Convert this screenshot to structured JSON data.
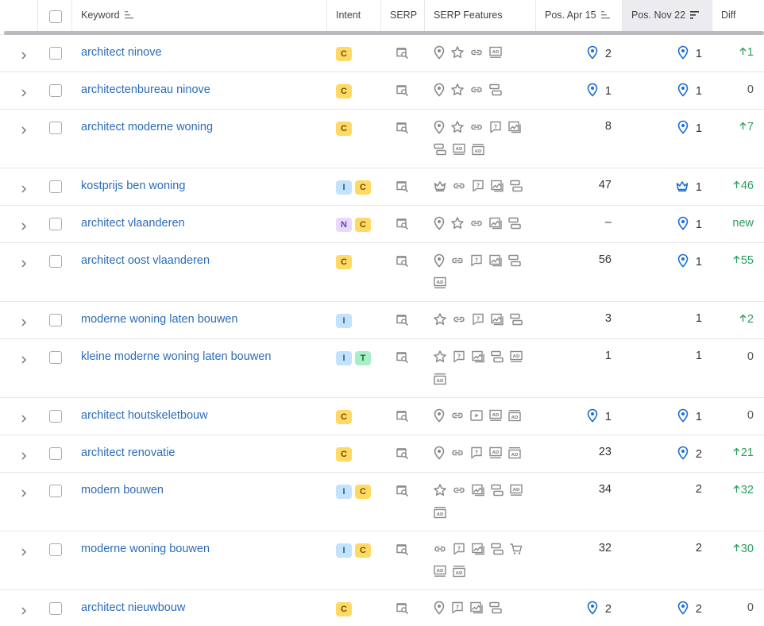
{
  "header": {
    "keyword": "Keyword",
    "intent": "Intent",
    "serp": "SERP",
    "serp_features": "SERP Features",
    "pos_apr": "Pos. Apr 15",
    "pos_nov": "Pos. Nov 22",
    "diff": "Diff"
  },
  "colors": {
    "link": "#2b6cb8",
    "up": "#2a9d5c",
    "pin": "#1c6fd1"
  },
  "rows": [
    {
      "keyword": "architect ninove",
      "intent": [
        "C"
      ],
      "features": [
        "pin",
        "star",
        "link",
        "ad"
      ],
      "apr": "2",
      "apr_pin": true,
      "nov": "1",
      "nov_icon": "pin",
      "diff": "1",
      "dir": "up"
    },
    {
      "keyword": "architectenbureau ninove",
      "intent": [
        "C"
      ],
      "features": [
        "pin",
        "star",
        "link",
        "list"
      ],
      "apr": "1",
      "apr_pin": true,
      "nov": "1",
      "nov_icon": "pin",
      "diff": "0",
      "dir": "zero"
    },
    {
      "keyword": "architect moderne woning",
      "intent": [
        "C"
      ],
      "features": [
        "pin",
        "star",
        "link",
        "faq",
        "image",
        "list",
        "ad",
        "adbottom"
      ],
      "apr": "8",
      "apr_pin": false,
      "nov": "1",
      "nov_icon": "pin",
      "diff": "7",
      "dir": "up"
    },
    {
      "keyword": "kostprijs ben woning",
      "intent": [
        "I",
        "C"
      ],
      "features": [
        "crown",
        "link",
        "faq",
        "image",
        "list"
      ],
      "apr": "47",
      "apr_pin": false,
      "nov": "1",
      "nov_icon": "crown",
      "diff": "46",
      "dir": "up"
    },
    {
      "keyword": "architect vlaanderen",
      "intent": [
        "N",
        "C"
      ],
      "features": [
        "pin",
        "star",
        "link",
        "image",
        "list"
      ],
      "apr": "–",
      "apr_pin": false,
      "nov": "1",
      "nov_icon": "pin",
      "diff": "new",
      "dir": "new"
    },
    {
      "keyword": "architect oost vlaanderen",
      "intent": [
        "C"
      ],
      "features": [
        "pin",
        "link",
        "faq",
        "image",
        "list",
        "ad"
      ],
      "apr": "56",
      "apr_pin": false,
      "nov": "1",
      "nov_icon": "pin",
      "diff": "55",
      "dir": "up"
    },
    {
      "keyword": "moderne woning laten bouwen",
      "intent": [
        "I"
      ],
      "features": [
        "star",
        "link",
        "faq",
        "image",
        "list"
      ],
      "apr": "3",
      "apr_pin": false,
      "nov": "1",
      "nov_icon": "",
      "diff": "2",
      "dir": "up"
    },
    {
      "keyword": "kleine moderne woning laten bouwen",
      "intent": [
        "I",
        "T"
      ],
      "features": [
        "star",
        "faq",
        "image",
        "list",
        "ad",
        "adbottom"
      ],
      "apr": "1",
      "apr_pin": false,
      "nov": "1",
      "nov_icon": "",
      "diff": "0",
      "dir": "zero"
    },
    {
      "keyword": "architect houtskeletbouw",
      "intent": [
        "C"
      ],
      "features": [
        "pin",
        "link",
        "video",
        "ad",
        "adbottom"
      ],
      "apr": "1",
      "apr_pin": true,
      "nov": "1",
      "nov_icon": "pin",
      "diff": "0",
      "dir": "zero"
    },
    {
      "keyword": "architect renovatie",
      "intent": [
        "C"
      ],
      "features": [
        "pin",
        "link",
        "faq",
        "ad",
        "adbottom"
      ],
      "apr": "23",
      "apr_pin": false,
      "nov": "2",
      "nov_icon": "pin",
      "diff": "21",
      "dir": "up"
    },
    {
      "keyword": "modern bouwen",
      "intent": [
        "I",
        "C"
      ],
      "features": [
        "star",
        "link",
        "image",
        "list",
        "ad",
        "adbottom"
      ],
      "apr": "34",
      "apr_pin": false,
      "nov": "2",
      "nov_icon": "",
      "diff": "32",
      "dir": "up"
    },
    {
      "keyword": "moderne woning bouwen",
      "intent": [
        "I",
        "C"
      ],
      "features": [
        "link",
        "faq",
        "image",
        "list",
        "cart",
        "ad",
        "adbottom"
      ],
      "apr": "32",
      "apr_pin": false,
      "nov": "2",
      "nov_icon": "",
      "diff": "30",
      "dir": "up"
    },
    {
      "keyword": "architect nieuwbouw",
      "intent": [
        "C"
      ],
      "features": [
        "pin",
        "faq",
        "image",
        "list"
      ],
      "apr": "2",
      "apr_pin": true,
      "nov": "2",
      "nov_icon": "pin",
      "diff": "0",
      "dir": "zero"
    }
  ]
}
